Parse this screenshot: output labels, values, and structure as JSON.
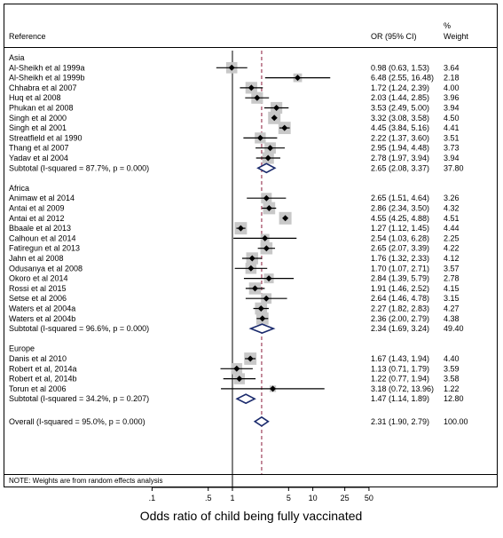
{
  "header": {
    "reference": "Reference",
    "or_ci": "OR (95% CI)",
    "weight_line1": "%",
    "weight_line2": "Weight"
  },
  "footer": {
    "note": "NOTE: Weights are from random effects analysis"
  },
  "colors": {
    "marker": "#000000",
    "weight_box": "#c8c8c8",
    "diamond": "#1a2a6c",
    "overall_line": "#8b1a3a"
  },
  "chart_data": {
    "type": "forest",
    "xlabel": "Odds ratio of child being fully vaccinated",
    "x_scale": "log",
    "xlim": [
      0.06,
      60
    ],
    "x_ticks": [
      0.1,
      0.5,
      1,
      5,
      10,
      25,
      50
    ],
    "x_tick_labels": [
      ".1",
      ".5",
      "1",
      "5",
      "10",
      "25",
      "50"
    ],
    "null_line": 1,
    "overall_line": 2.31,
    "groups": [
      {
        "name": "Asia",
        "studies": [
          {
            "label": "Al-Sheikh et al 1999a",
            "or": 0.98,
            "lo": 0.63,
            "hi": 1.53,
            "ci_text": "0.98 (0.63, 1.53)",
            "weight": "3.64"
          },
          {
            "label": "Al-Sheikh et al 1999b",
            "or": 6.48,
            "lo": 2.55,
            "hi": 16.48,
            "ci_text": "6.48 (2.55, 16.48)",
            "weight": "2.18"
          },
          {
            "label": "Chhabra et al 2007",
            "or": 1.72,
            "lo": 1.24,
            "hi": 2.39,
            "ci_text": "1.72 (1.24, 2.39)",
            "weight": "4.00"
          },
          {
            "label": "Huq et al 2008",
            "or": 2.03,
            "lo": 1.44,
            "hi": 2.85,
            "ci_text": "2.03 (1.44, 2.85)",
            "weight": "3.96"
          },
          {
            "label": "Phukan et al 2008",
            "or": 3.53,
            "lo": 2.49,
            "hi": 5.0,
            "ci_text": "3.53 (2.49, 5.00)",
            "weight": "3.94"
          },
          {
            "label": "Singh et al 2000",
            "or": 3.32,
            "lo": 3.08,
            "hi": 3.58,
            "ci_text": "3.32 (3.08, 3.58)",
            "weight": "4.50"
          },
          {
            "label": "Singh et al 2001",
            "or": 4.45,
            "lo": 3.84,
            "hi": 5.16,
            "ci_text": "4.45 (3.84, 5.16)",
            "weight": "4.41"
          },
          {
            "label": "Streatfield et al 1990",
            "or": 2.22,
            "lo": 1.37,
            "hi": 3.6,
            "ci_text": "2.22 (1.37, 3.60)",
            "weight": "3.51"
          },
          {
            "label": "Thang et al 2007",
            "or": 2.95,
            "lo": 1.94,
            "hi": 4.48,
            "ci_text": "2.95 (1.94, 4.48)",
            "weight": "3.73"
          },
          {
            "label": "Yadav et al 2004",
            "or": 2.78,
            "lo": 1.97,
            "hi": 3.94,
            "ci_text": "2.78 (1.97, 3.94)",
            "weight": "3.94"
          }
        ],
        "subtotal": {
          "label": "Subtotal  (I-squared = 87.7%, p = 0.000)",
          "or": 2.65,
          "lo": 2.08,
          "hi": 3.37,
          "ci_text": "2.65 (2.08, 3.37)",
          "weight": "37.80"
        }
      },
      {
        "name": "Africa",
        "studies": [
          {
            "label": "Animaw et al 2014",
            "or": 2.65,
            "lo": 1.51,
            "hi": 4.64,
            "ci_text": "2.65 (1.51, 4.64)",
            "weight": "3.26"
          },
          {
            "label": "Antai et al 2009",
            "or": 2.86,
            "lo": 2.34,
            "hi": 3.5,
            "ci_text": "2.86 (2.34, 3.50)",
            "weight": "4.32"
          },
          {
            "label": "Antai et al 2012",
            "or": 4.55,
            "lo": 4.25,
            "hi": 4.88,
            "ci_text": "4.55 (4.25, 4.88)",
            "weight": "4.51"
          },
          {
            "label": "Bbaale et al 2013",
            "or": 1.27,
            "lo": 1.12,
            "hi": 1.45,
            "ci_text": "1.27 (1.12, 1.45)",
            "weight": "4.44"
          },
          {
            "label": "Calhoun et al 2014",
            "or": 2.54,
            "lo": 1.03,
            "hi": 6.28,
            "ci_text": "2.54 (1.03, 6.28)",
            "weight": "2.25"
          },
          {
            "label": "Fatiregun et al 2013",
            "or": 2.65,
            "lo": 2.07,
            "hi": 3.39,
            "ci_text": "2.65 (2.07, 3.39)",
            "weight": "4.22"
          },
          {
            "label": "Jahn et al 2008",
            "or": 1.76,
            "lo": 1.32,
            "hi": 2.33,
            "ci_text": "1.76 (1.32, 2.33)",
            "weight": "4.12"
          },
          {
            "label": "Odusanya et al 2008",
            "or": 1.7,
            "lo": 1.07,
            "hi": 2.71,
            "ci_text": "1.70 (1.07, 2.71)",
            "weight": "3.57"
          },
          {
            "label": "Okoro et al 2014",
            "or": 2.84,
            "lo": 1.39,
            "hi": 5.79,
            "ci_text": "2.84 (1.39, 5.79)",
            "weight": "2.78"
          },
          {
            "label": "Rossi et al 2015",
            "or": 1.91,
            "lo": 1.46,
            "hi": 2.52,
            "ci_text": "1.91 (1.46, 2.52)",
            "weight": "4.15"
          },
          {
            "label": "Setse et al 2006",
            "or": 2.64,
            "lo": 1.46,
            "hi": 4.78,
            "ci_text": "2.64 (1.46, 4.78)",
            "weight": "3.15"
          },
          {
            "label": "Waters et al 2004a",
            "or": 2.27,
            "lo": 1.82,
            "hi": 2.83,
            "ci_text": "2.27 (1.82, 2.83)",
            "weight": "4.27"
          },
          {
            "label": "Waters et al 2004b",
            "or": 2.36,
            "lo": 2.0,
            "hi": 2.79,
            "ci_text": "2.36 (2.00, 2.79)",
            "weight": "4.38"
          }
        ],
        "subtotal": {
          "label": "Subtotal  (I-squared = 96.6%, p = 0.000)",
          "or": 2.34,
          "lo": 1.69,
          "hi": 3.24,
          "ci_text": "2.34 (1.69, 3.24)",
          "weight": "49.40"
        }
      },
      {
        "name": "Europe",
        "studies": [
          {
            "label": "Danis et al 2010",
            "or": 1.67,
            "lo": 1.43,
            "hi": 1.94,
            "ci_text": "1.67 (1.43, 1.94)",
            "weight": "4.40"
          },
          {
            "label": "Robert et al, 2014a",
            "or": 1.13,
            "lo": 0.71,
            "hi": 1.79,
            "ci_text": "1.13 (0.71, 1.79)",
            "weight": "3.59"
          },
          {
            "label": "Robert et al, 2014b",
            "or": 1.22,
            "lo": 0.77,
            "hi": 1.94,
            "ci_text": "1.22 (0.77, 1.94)",
            "weight": "3.58"
          },
          {
            "label": "Torun et al 2006",
            "or": 3.18,
            "lo": 0.72,
            "hi": 13.96,
            "ci_text": "3.18 (0.72, 13.96)",
            "weight": "1.22"
          }
        ],
        "subtotal": {
          "label": "Subtotal  (I-squared = 34.2%, p = 0.207)",
          "or": 1.47,
          "lo": 1.14,
          "hi": 1.89,
          "ci_text": "1.47 (1.14, 1.89)",
          "weight": "12.80"
        }
      }
    ],
    "overall": {
      "label": "Overall  (I-squared = 95.0%, p = 0.000)",
      "or": 2.31,
      "lo": 1.9,
      "hi": 2.79,
      "ci_text": "2.31 (1.90, 2.79)",
      "weight": "100.00"
    }
  }
}
